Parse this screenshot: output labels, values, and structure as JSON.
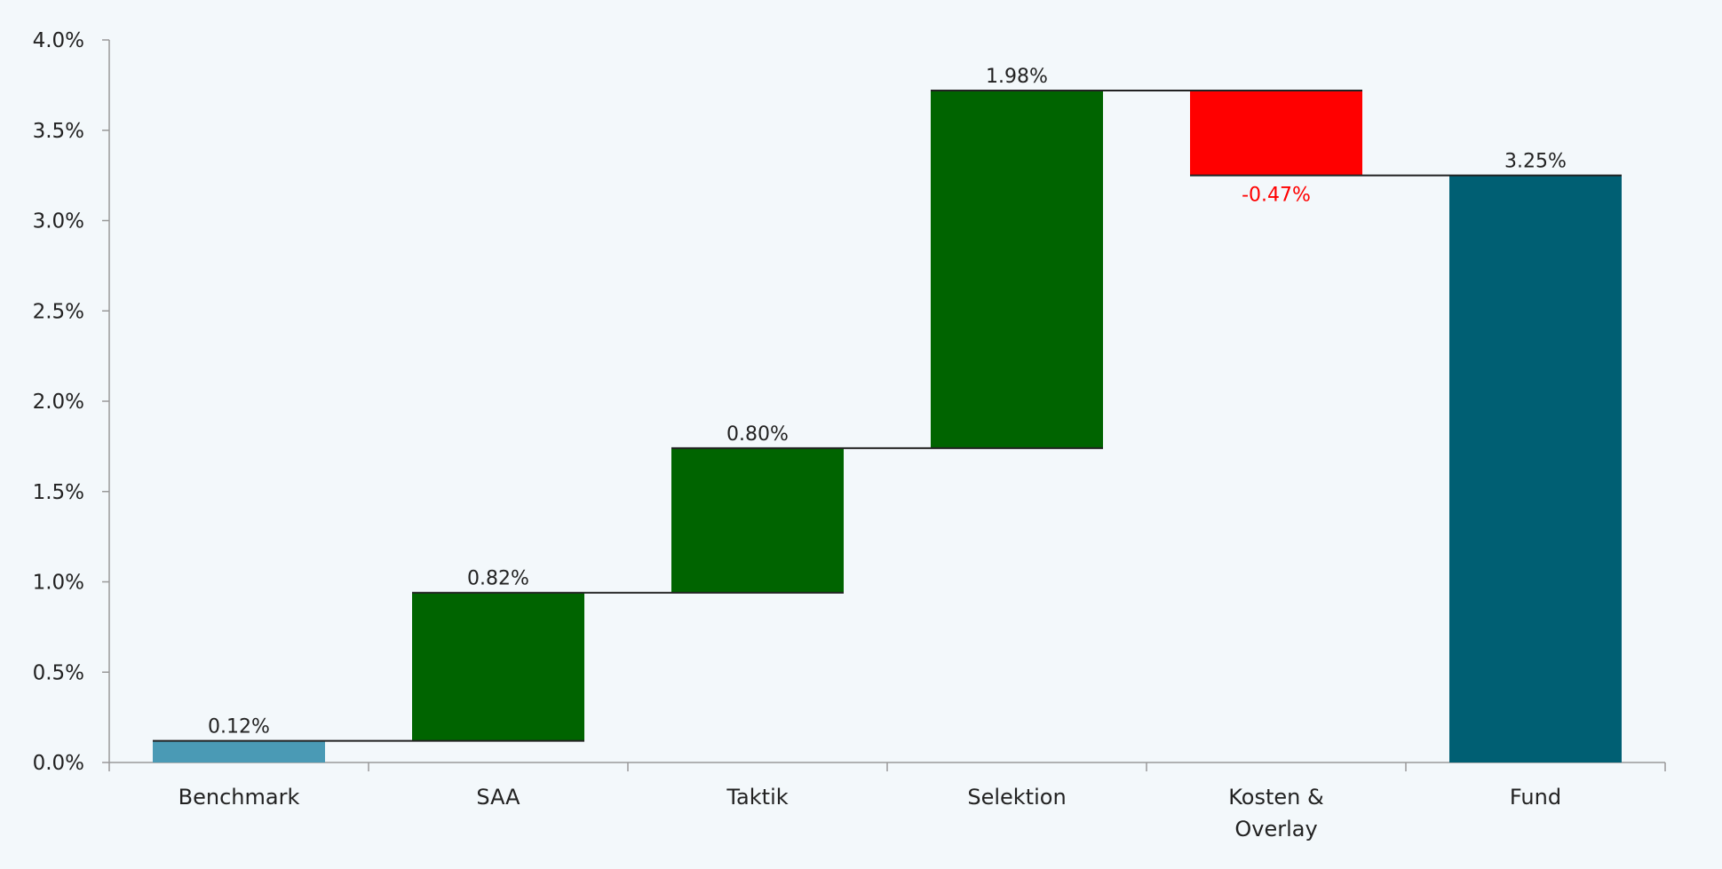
{
  "chart_data": {
    "type": "waterfall",
    "categories": [
      "Benchmark",
      "SAA",
      "Taktik",
      "Selektion",
      "Kosten & Overlay",
      "Fund"
    ],
    "category_label_lines": [
      [
        "Benchmark"
      ],
      [
        "SAA"
      ],
      [
        "Taktik"
      ],
      [
        "Selektion"
      ],
      [
        "Kosten &",
        "Overlay"
      ],
      [
        "Fund"
      ]
    ],
    "values": [
      0.12,
      0.82,
      0.8,
      1.98,
      -0.47,
      3.25
    ],
    "bar_kinds": [
      "total",
      "delta",
      "delta",
      "delta",
      "delta",
      "total"
    ],
    "data_labels": [
      "0.12%",
      "0.82%",
      "0.80%",
      "1.98%",
      "-0.47%",
      "3.25%"
    ],
    "yticks": [
      0.0,
      0.5,
      1.0,
      1.5,
      2.0,
      2.5,
      3.0,
      3.5,
      4.0
    ],
    "ytick_labels": [
      "0.0%",
      "0.5%",
      "1.0%",
      "1.5%",
      "2.0%",
      "2.5%",
      "3.0%",
      "3.5%",
      "4.0%"
    ],
    "ylim": [
      0,
      4.0
    ],
    "grid": false,
    "legend": "none",
    "colors": {
      "benchmark": "#4a9ab5",
      "positive": "#006400",
      "negative": "#ff0000",
      "fund": "#005f73",
      "negative_label": "#ff0000",
      "label": "#222222",
      "axis": "#999999",
      "background": "#f3f8fb"
    }
  }
}
